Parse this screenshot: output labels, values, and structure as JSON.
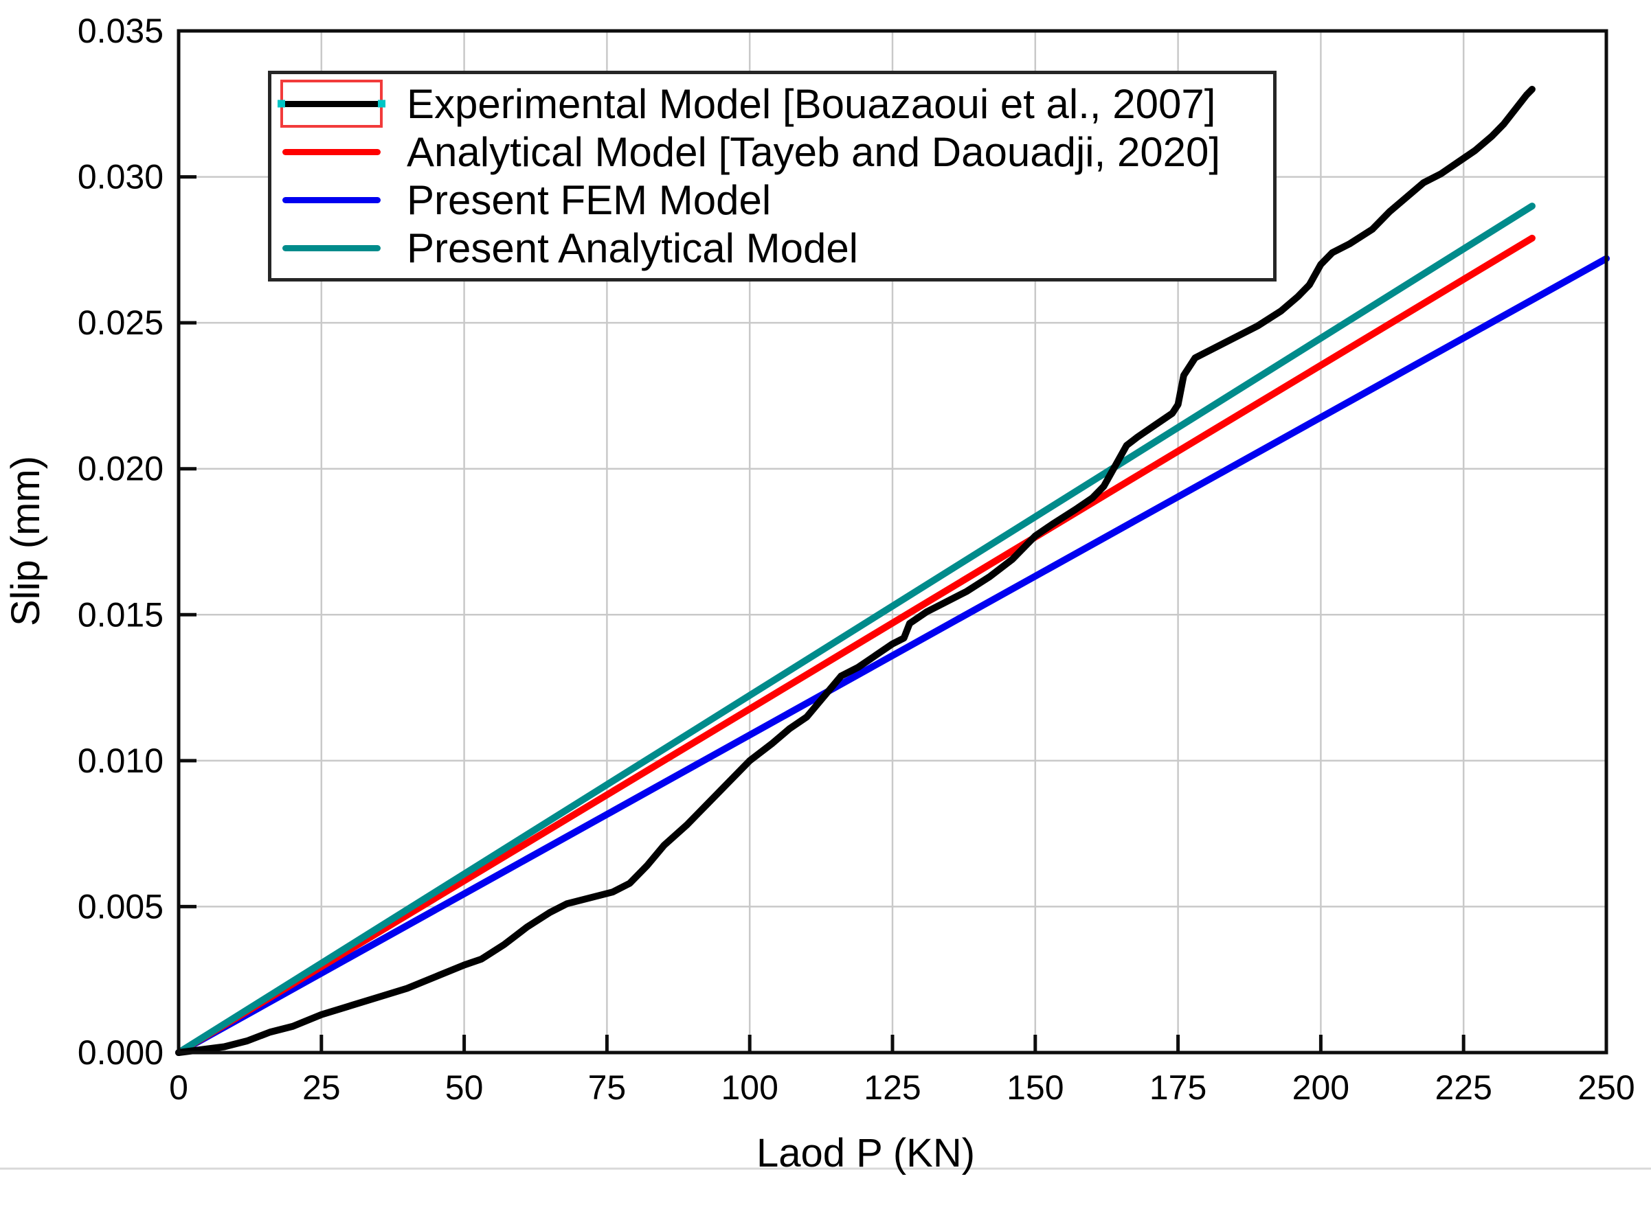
{
  "figure": {
    "description": "Line chart comparing load-slip response of four models",
    "separator_line_y": 1702
  },
  "style": {
    "grid_color": "#c9c9c9",
    "axis_color": "#0d0d0d",
    "background": "#ffffff",
    "selection_box_color": "#f23b3b",
    "selection_handle_color": "#00c6c6",
    "separator_color": "#d9d9d9",
    "series_colors": {
      "experimental": "#000000",
      "analytical_tayeb": "#ff0000",
      "present_fem": "#0000f0",
      "present_analytical": "#008b8b"
    }
  },
  "chart_data": {
    "type": "line",
    "title": "",
    "xlabel": "Laod P (KN)",
    "ylabel": "Slip (mm)",
    "xlim": [
      0,
      250
    ],
    "ylim": [
      0,
      0.035
    ],
    "grid": true,
    "legend_position": "top-left",
    "xticks": [
      {
        "v": 0,
        "label": "0"
      },
      {
        "v": 25,
        "label": "25"
      },
      {
        "v": 50,
        "label": "50"
      },
      {
        "v": 75,
        "label": "75"
      },
      {
        "v": 100,
        "label": "100"
      },
      {
        "v": 125,
        "label": "125"
      },
      {
        "v": 150,
        "label": "150"
      },
      {
        "v": 175,
        "label": "175"
      },
      {
        "v": 200,
        "label": "200"
      },
      {
        "v": 225,
        "label": "225"
      },
      {
        "v": 250,
        "label": "250"
      }
    ],
    "yticks": [
      {
        "v": 0.0,
        "label": "0.000"
      },
      {
        "v": 0.005,
        "label": "0.005"
      },
      {
        "v": 0.01,
        "label": "0.010"
      },
      {
        "v": 0.015,
        "label": "0.015"
      },
      {
        "v": 0.02,
        "label": "0.020"
      },
      {
        "v": 0.025,
        "label": "0.025"
      },
      {
        "v": 0.03,
        "label": "0.030"
      },
      {
        "v": 0.035,
        "label": "0.035"
      }
    ],
    "draw_order": [
      2,
      1,
      3,
      0
    ],
    "series": [
      {
        "id": "experimental",
        "name": "Experimental Model [Bouazaoui et al., 2007]",
        "color": "#000000",
        "selected_in_legend": true,
        "points": [
          [
            0,
            0.0
          ],
          [
            4,
            0.0001
          ],
          [
            8,
            0.0002
          ],
          [
            12,
            0.0004
          ],
          [
            16,
            0.0007
          ],
          [
            20,
            0.0009
          ],
          [
            25,
            0.0013
          ],
          [
            30,
            0.0016
          ],
          [
            35,
            0.0019
          ],
          [
            40,
            0.0022
          ],
          [
            45,
            0.0026
          ],
          [
            50,
            0.003
          ],
          [
            53,
            0.0032
          ],
          [
            57,
            0.0037
          ],
          [
            61,
            0.0043
          ],
          [
            65,
            0.0048
          ],
          [
            68,
            0.0051
          ],
          [
            72,
            0.0053
          ],
          [
            76,
            0.0055
          ],
          [
            79,
            0.0058
          ],
          [
            82,
            0.0064
          ],
          [
            85,
            0.0071
          ],
          [
            89,
            0.0078
          ],
          [
            93,
            0.0086
          ],
          [
            97,
            0.0094
          ],
          [
            100,
            0.01
          ],
          [
            104,
            0.0106
          ],
          [
            107,
            0.0111
          ],
          [
            110,
            0.0115
          ],
          [
            113,
            0.0122
          ],
          [
            116,
            0.0129
          ],
          [
            119,
            0.0132
          ],
          [
            122,
            0.0136
          ],
          [
            125,
            0.014
          ],
          [
            127,
            0.0142
          ],
          [
            128,
            0.0147
          ],
          [
            131,
            0.0151
          ],
          [
            134,
            0.0154
          ],
          [
            138,
            0.0158
          ],
          [
            142,
            0.0163
          ],
          [
            146,
            0.0169
          ],
          [
            150,
            0.0177
          ],
          [
            153,
            0.0181
          ],
          [
            157,
            0.0186
          ],
          [
            160,
            0.019
          ],
          [
            162,
            0.0194
          ],
          [
            164,
            0.0201
          ],
          [
            166,
            0.0208
          ],
          [
            168,
            0.0211
          ],
          [
            171,
            0.0215
          ],
          [
            174,
            0.0219
          ],
          [
            175,
            0.0222
          ],
          [
            176,
            0.0232
          ],
          [
            178,
            0.0238
          ],
          [
            181,
            0.0241
          ],
          [
            185,
            0.0245
          ],
          [
            189,
            0.0249
          ],
          [
            193,
            0.0254
          ],
          [
            196,
            0.0259
          ],
          [
            198,
            0.0263
          ],
          [
            200,
            0.027
          ],
          [
            202,
            0.0274
          ],
          [
            205,
            0.0277
          ],
          [
            209,
            0.0282
          ],
          [
            212,
            0.0288
          ],
          [
            215,
            0.0293
          ],
          [
            218,
            0.0298
          ],
          [
            221,
            0.0301
          ],
          [
            224,
            0.0305
          ],
          [
            227,
            0.0309
          ],
          [
            230,
            0.0314
          ],
          [
            232,
            0.0318
          ],
          [
            234,
            0.0323
          ],
          [
            236,
            0.0328
          ],
          [
            237,
            0.033
          ]
        ]
      },
      {
        "id": "analytical_tayeb",
        "name": "Analytical Model [Tayeb and Daouadji, 2020]",
        "color": "#ff0000",
        "selected_in_legend": false,
        "points": [
          [
            0,
            0.0
          ],
          [
            237,
            0.0279
          ]
        ]
      },
      {
        "id": "present_fem",
        "name": "Present FEM Model",
        "color": "#0000f0",
        "selected_in_legend": false,
        "points": [
          [
            0,
            0.0
          ],
          [
            250,
            0.0272
          ]
        ]
      },
      {
        "id": "present_analytical",
        "name": "Present Analytical Model",
        "color": "#008b8b",
        "selected_in_legend": false,
        "points": [
          [
            0,
            0.0
          ],
          [
            237,
            0.029
          ]
        ]
      }
    ]
  }
}
